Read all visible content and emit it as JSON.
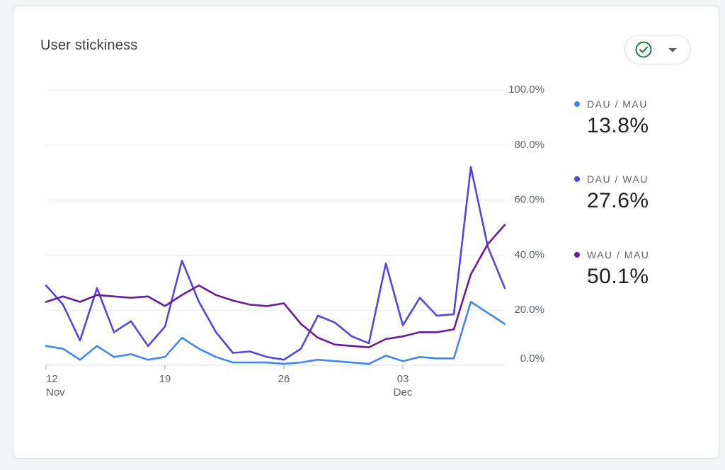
{
  "card": {
    "title": "User stickiness",
    "status_icon": "check-circle-icon",
    "menu_icon": "caret-down-icon"
  },
  "colors": {
    "dau_mau": "#4285f4",
    "dau_wau": "#4f46e5",
    "wau_mau": "#6a1b9a",
    "grid": "#e8eaed",
    "axis_text": "#5f6368",
    "check": "#188038"
  },
  "legend": [
    {
      "label": "DAU / MAU",
      "value": "13.8%",
      "color": "#4285f4"
    },
    {
      "label": "DAU / WAU",
      "value": "27.6%",
      "color": "#4f46e5"
    },
    {
      "label": "WAU / MAU",
      "value": "50.1%",
      "color": "#6a1b9a"
    }
  ],
  "chart_data": {
    "type": "line",
    "x": [
      "Nov 12",
      "Nov 13",
      "Nov 14",
      "Nov 15",
      "Nov 16",
      "Nov 17",
      "Nov 18",
      "Nov 19",
      "Nov 20",
      "Nov 21",
      "Nov 22",
      "Nov 23",
      "Nov 24",
      "Nov 25",
      "Nov 26",
      "Nov 27",
      "Nov 28",
      "Nov 29",
      "Nov 30",
      "Dec 01",
      "Dec 02",
      "Dec 03",
      "Dec 04",
      "Dec 05",
      "Dec 06",
      "Dec 07",
      "Dec 08",
      "Dec 09"
    ],
    "x_ticks": [
      {
        "index": 0,
        "label": "12",
        "sublabel": "Nov"
      },
      {
        "index": 7,
        "label": "19",
        "sublabel": ""
      },
      {
        "index": 14,
        "label": "26",
        "sublabel": ""
      },
      {
        "index": 21,
        "label": "03",
        "sublabel": "Dec"
      }
    ],
    "y_ticks": [
      "0.0%",
      "20.0%",
      "40.0%",
      "60.0%",
      "80.0%",
      "100.0%"
    ],
    "ylim": [
      0,
      100
    ],
    "grid": true,
    "legend_position": "right",
    "series": [
      {
        "name": "DAU / MAU",
        "color": "#4285f4",
        "values": [
          7,
          6,
          2,
          7,
          3,
          4,
          2,
          3,
          10,
          6,
          3,
          1,
          1,
          1,
          0.5,
          1,
          2,
          1.5,
          1,
          0.5,
          3.5,
          1.5,
          3,
          2.5,
          2.5,
          23,
          19,
          15
        ]
      },
      {
        "name": "DAU / WAU",
        "color": "#4f46e5",
        "values": [
          29,
          22,
          9,
          28,
          12,
          16,
          7,
          14,
          38,
          23,
          12,
          4.5,
          5,
          3,
          2,
          6,
          18,
          15.5,
          10.5,
          8,
          37,
          14.5,
          24.5,
          18,
          18.5,
          72,
          43,
          28
        ]
      },
      {
        "name": "WAU / MAU",
        "color": "#6a1b9a",
        "values": [
          23,
          25,
          23,
          25.5,
          25,
          24.5,
          25,
          21.5,
          25.5,
          29,
          25.5,
          23.5,
          22,
          21.5,
          22.5,
          15,
          10,
          7.5,
          7,
          6.5,
          9.5,
          10.5,
          12,
          12,
          13,
          33,
          44,
          51
        ]
      }
    ]
  }
}
